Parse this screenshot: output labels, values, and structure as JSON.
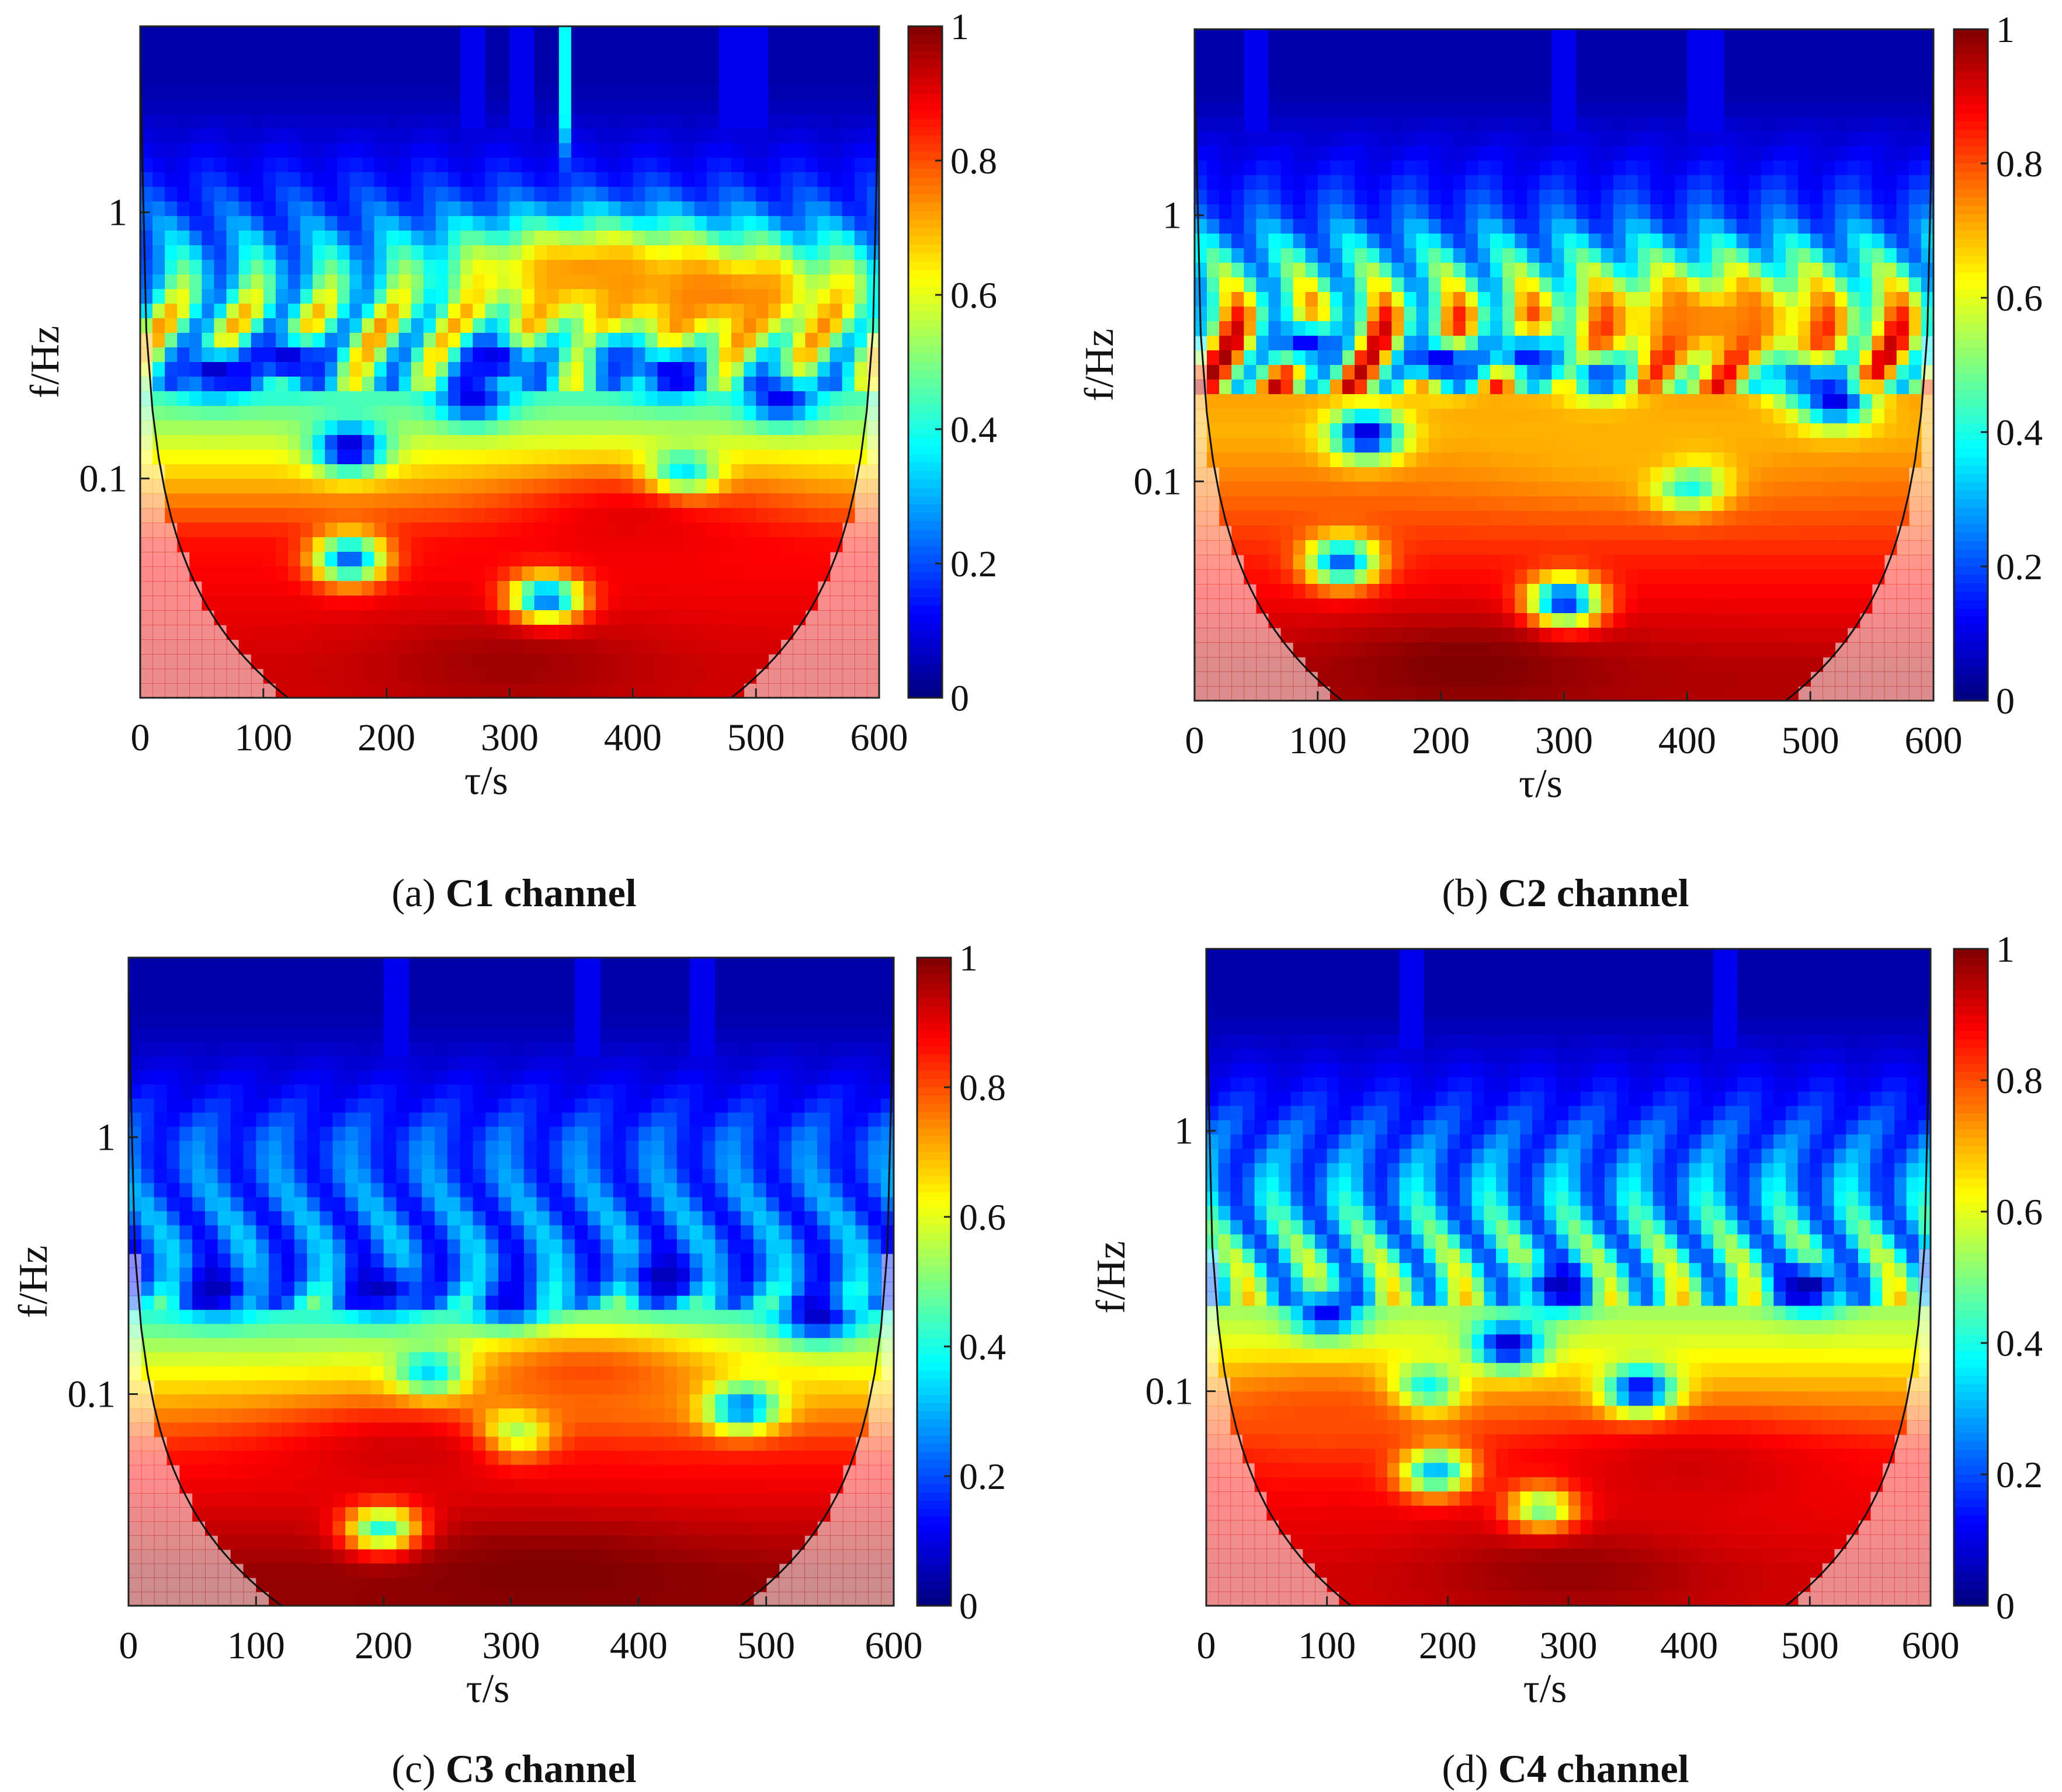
{
  "figure": {
    "panels": [
      {
        "tag": "(a)",
        "title": "C1 channel"
      },
      {
        "tag": "(b)",
        "title": "C2 channel"
      },
      {
        "tag": "(c)",
        "title": "C3 channel"
      },
      {
        "tag": "(d)",
        "title": "C4 channel"
      }
    ]
  },
  "chart_data": [
    {
      "type": "heatmap",
      "title": "C1 channel",
      "xlabel": "τ/s",
      "ylabel": "f/Hz",
      "xlim": [
        0,
        600
      ],
      "yscale": "log",
      "ylim": [
        0.015,
        5
      ],
      "x_ticks": [
        "0",
        "100",
        "200",
        "300",
        "400",
        "500",
        "600"
      ],
      "x_tick_values": [
        0,
        100,
        200,
        300,
        400,
        500,
        600
      ],
      "y_ticks": [
        "0.1",
        "1"
      ],
      "y_tick_values": [
        0.1,
        1
      ],
      "colorbar": {
        "range": [
          0,
          1
        ],
        "ticks": [
          "0",
          "0.2",
          "0.4",
          "0.6",
          "0.8",
          "1"
        ],
        "tick_values": [
          0,
          0.2,
          0.4,
          0.6,
          0.8,
          1
        ],
        "colormap": "jet"
      },
      "bands": [
        {
          "f": 0.02,
          "v": 0.92
        },
        {
          "f": 0.06,
          "v": 0.86
        },
        {
          "f": 0.2,
          "v": 0.45
        },
        {
          "f": 0.4,
          "v": 0.6
        },
        {
          "f": 1.0,
          "v": 0.3
        },
        {
          "f": 3.0,
          "v": 0.05
        }
      ],
      "holes": [
        {
          "t": 60,
          "f": 0.25,
          "v": 0.05
        },
        {
          "t": 120,
          "f": 0.28,
          "v": 0.05
        },
        {
          "t": 170,
          "f": 0.13,
          "v": 0.05
        },
        {
          "t": 290,
          "f": 0.28,
          "v": 0.05
        },
        {
          "t": 270,
          "f": 0.2,
          "v": 0.1
        },
        {
          "t": 390,
          "f": 0.3,
          "v": 0.1
        },
        {
          "t": 430,
          "f": 0.25,
          "v": 0.05
        },
        {
          "t": 440,
          "f": 0.1,
          "v": 0.05
        },
        {
          "t": 520,
          "f": 0.2,
          "v": 0.1
        },
        {
          "t": 330,
          "f": 0.035,
          "v": 0.05
        },
        {
          "t": 170,
          "f": 0.05,
          "v": 0.2
        }
      ],
      "peaks": [
        {
          "t": 360,
          "f": 0.6,
          "v": 0.72
        },
        {
          "t": 470,
          "f": 0.5,
          "v": 0.75
        },
        {
          "t": 300,
          "f": 0.02,
          "v": 0.97
        },
        {
          "t": 400,
          "f": 0.07,
          "v": 0.9
        }
      ],
      "spikes": [
        270,
        310,
        345,
        480,
        500
      ],
      "coi_min_f": 0.014
    },
    {
      "type": "heatmap",
      "title": "C2 channel",
      "xlabel": "τ/s",
      "ylabel": "f/Hz",
      "xlim": [
        0,
        600
      ],
      "yscale": "log",
      "ylim": [
        0.015,
        5
      ],
      "x_ticks": [
        "0",
        "100",
        "200",
        "300",
        "400",
        "500",
        "600"
      ],
      "x_tick_values": [
        0,
        100,
        200,
        300,
        400,
        500,
        600
      ],
      "y_ticks": [
        "0.1",
        "1"
      ],
      "y_tick_values": [
        0.1,
        1
      ],
      "colorbar": {
        "range": [
          0,
          1
        ],
        "ticks": [
          "0",
          "0.2",
          "0.4",
          "0.6",
          "0.8",
          "1"
        ],
        "tick_values": [
          0,
          0.2,
          0.4,
          0.6,
          0.8,
          1
        ],
        "colormap": "jet"
      },
      "bands": [
        {
          "f": 0.02,
          "v": 0.95
        },
        {
          "f": 0.05,
          "v": 0.85
        },
        {
          "f": 0.15,
          "v": 0.7
        },
        {
          "f": 0.4,
          "v": 0.75
        },
        {
          "f": 1.0,
          "v": 0.3
        },
        {
          "f": 3.0,
          "v": 0.05
        }
      ],
      "holes": [
        {
          "t": 90,
          "f": 0.33,
          "v": 0.1
        },
        {
          "t": 200,
          "f": 0.28,
          "v": 0.05
        },
        {
          "t": 140,
          "f": 0.15,
          "v": 0.05
        },
        {
          "t": 270,
          "f": 0.3,
          "v": 0.05
        },
        {
          "t": 330,
          "f": 0.25,
          "v": 0.05
        },
        {
          "t": 490,
          "f": 0.25,
          "v": 0.05
        },
        {
          "t": 520,
          "f": 0.2,
          "v": 0.05
        },
        {
          "t": 300,
          "f": 0.035,
          "v": 0.05
        },
        {
          "t": 120,
          "f": 0.05,
          "v": 0.2
        },
        {
          "t": 400,
          "f": 0.1,
          "v": 0.1
        }
      ],
      "peaks": [
        {
          "t": 220,
          "f": 0.02,
          "v": 1.0
        },
        {
          "t": 350,
          "f": 0.13,
          "v": 0.7
        },
        {
          "t": 420,
          "f": 0.4,
          "v": 0.75
        }
      ],
      "spikes": [
        50,
        300,
        410,
        420
      ],
      "coi_min_f": 0.014
    },
    {
      "type": "heatmap",
      "title": "C3 channel",
      "xlabel": "τ/s",
      "ylabel": "f/Hz",
      "xlim": [
        0,
        600
      ],
      "yscale": "log",
      "ylim": [
        0.015,
        5
      ],
      "x_ticks": [
        "0",
        "100",
        "200",
        "300",
        "400",
        "500",
        "600"
      ],
      "x_tick_values": [
        0,
        100,
        200,
        300,
        400,
        500,
        600
      ],
      "y_ticks": [
        "0.1",
        "1"
      ],
      "y_tick_values": [
        0.1,
        1
      ],
      "colorbar": {
        "range": [
          0,
          1
        ],
        "ticks": [
          "0",
          "0.2",
          "0.4",
          "0.6",
          "0.8",
          "1"
        ],
        "tick_values": [
          0,
          0.2,
          0.4,
          0.6,
          0.8,
          1
        ],
        "colormap": "jet"
      },
      "bands": [
        {
          "f": 0.02,
          "v": 0.98
        },
        {
          "f": 0.06,
          "v": 0.85
        },
        {
          "f": 0.15,
          "v": 0.55
        },
        {
          "f": 0.3,
          "v": 0.25
        },
        {
          "f": 1.0,
          "v": 0.3
        },
        {
          "f": 3.0,
          "v": 0.05
        }
      ],
      "holes": [
        {
          "t": 70,
          "f": 0.25,
          "v": 0.05
        },
        {
          "t": 200,
          "f": 0.25,
          "v": 0.05
        },
        {
          "t": 300,
          "f": 0.22,
          "v": 0.05
        },
        {
          "t": 420,
          "f": 0.28,
          "v": 0.05
        },
        {
          "t": 540,
          "f": 0.2,
          "v": 0.05
        },
        {
          "t": 240,
          "f": 0.12,
          "v": 0.1
        },
        {
          "t": 300,
          "f": 0.07,
          "v": 0.1
        },
        {
          "t": 480,
          "f": 0.09,
          "v": 0.1
        },
        {
          "t": 200,
          "f": 0.03,
          "v": 0.3
        }
      ],
      "peaks": [
        {
          "t": 220,
          "f": 0.06,
          "v": 0.92
        },
        {
          "t": 360,
          "f": 0.12,
          "v": 0.8
        },
        {
          "t": 330,
          "f": 0.02,
          "v": 1.0
        }
      ],
      "spikes": [
        210,
        360,
        450
      ],
      "coi_min_f": 0.014
    },
    {
      "type": "heatmap",
      "title": "C4 channel",
      "xlabel": "τ/s",
      "ylabel": "f/Hz",
      "xlim": [
        0,
        600
      ],
      "yscale": "log",
      "ylim": [
        0.015,
        5
      ],
      "x_ticks": [
        "0",
        "100",
        "200",
        "300",
        "400",
        "500",
        "600"
      ],
      "x_tick_values": [
        0,
        100,
        200,
        300,
        400,
        500,
        600
      ],
      "y_ticks": [
        "0.1",
        "1"
      ],
      "y_tick_values": [
        0.1,
        1
      ],
      "colorbar": {
        "range": [
          0,
          1
        ],
        "ticks": [
          "0",
          "0.2",
          "0.4",
          "0.6",
          "0.8",
          "1"
        ],
        "tick_values": [
          0,
          0.2,
          0.4,
          0.6,
          0.8,
          1
        ],
        "colormap": "jet"
      },
      "bands": [
        {
          "f": 0.02,
          "v": 0.92
        },
        {
          "f": 0.06,
          "v": 0.86
        },
        {
          "f": 0.15,
          "v": 0.6
        },
        {
          "f": 0.3,
          "v": 0.45
        },
        {
          "f": 1.0,
          "v": 0.3
        },
        {
          "f": 3.0,
          "v": 0.05
        }
      ],
      "holes": [
        {
          "t": 100,
          "f": 0.2,
          "v": 0.1
        },
        {
          "t": 250,
          "f": 0.15,
          "v": 0.05
        },
        {
          "t": 360,
          "f": 0.1,
          "v": 0.05
        },
        {
          "t": 500,
          "f": 0.25,
          "v": 0.02
        },
        {
          "t": 180,
          "f": 0.1,
          "v": 0.1
        },
        {
          "t": 290,
          "f": 0.25,
          "v": 0.05
        },
        {
          "t": 190,
          "f": 0.05,
          "v": 0.2
        },
        {
          "t": 280,
          "f": 0.035,
          "v": 0.3
        }
      ],
      "peaks": [
        {
          "t": 300,
          "f": 0.02,
          "v": 0.98
        },
        {
          "t": 100,
          "f": 0.08,
          "v": 0.8
        },
        {
          "t": 400,
          "f": 0.05,
          "v": 0.92
        }
      ],
      "spikes": [
        170,
        430
      ],
      "coi_min_f": 0.014
    }
  ]
}
